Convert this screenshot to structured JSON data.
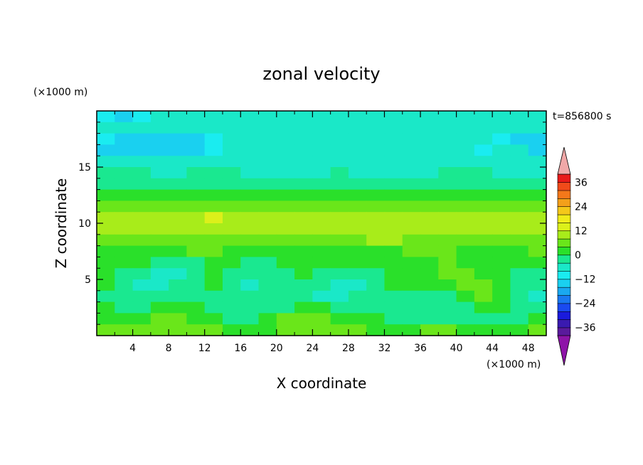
{
  "chart_data": {
    "type": "heatmap",
    "title": "zonal velocity",
    "xlabel": "X coordinate",
    "ylabel": "Z coordinate",
    "x_unit": "(×1000 m)",
    "y_unit": "(×1000 m)",
    "time_label": "t=856800 s",
    "xlim": [
      0,
      50
    ],
    "ylim": [
      0,
      20
    ],
    "x_ticks": [
      "4",
      "8",
      "12",
      "16",
      "20",
      "24",
      "28",
      "32",
      "36",
      "40",
      "44",
      "48"
    ],
    "y_ticks": [
      "5",
      "10",
      "15"
    ],
    "colorbar": {
      "tick_labels": [
        "36",
        "24",
        "12",
        "0",
        "−12",
        "−24",
        "−36"
      ],
      "tick_values": [
        36,
        24,
        12,
        0,
        -12,
        -24,
        -36
      ],
      "levels_min": -40,
      "levels_max": 40,
      "level_step": 4,
      "colors": [
        "#5a1a9c",
        "#3a1ab0",
        "#1a1adc",
        "#1a4af0",
        "#1a78f0",
        "#1aa8f0",
        "#1ad0f0",
        "#1aecf0",
        "#1ae8c8",
        "#1ae890",
        "#2ae02a",
        "#6ae61a",
        "#a8ec1a",
        "#dcf01a",
        "#f0ec1a",
        "#f4c81a",
        "#f4a01a",
        "#f4781a",
        "#f04a1a",
        "#e81a1a"
      ],
      "under_color": "#8e14a8",
      "over_color": "#f0a8a8"
    },
    "rows_top_to_bottom": [
      [
        -12,
        -16,
        -12,
        -8,
        -8,
        -8,
        -8,
        -8,
        -8,
        -8,
        -8,
        -8,
        -8,
        -8,
        -8,
        -8,
        -8,
        -8,
        -8,
        -8,
        -8,
        -8,
        -8,
        -8,
        -8
      ],
      [
        -8,
        -8,
        -8,
        -8,
        -8,
        -8,
        -8,
        -8,
        -8,
        -8,
        -8,
        -8,
        -8,
        -8,
        -8,
        -8,
        -8,
        -8,
        -8,
        -8,
        -8,
        -8,
        -8,
        -8,
        -8
      ],
      [
        -12,
        -16,
        -16,
        -16,
        -16,
        -16,
        -12,
        -8,
        -8,
        -8,
        -8,
        -8,
        -8,
        -8,
        -8,
        -8,
        -8,
        -8,
        -8,
        -8,
        -8,
        -8,
        -12,
        -16,
        -16
      ],
      [
        -16,
        -16,
        -16,
        -16,
        -16,
        -16,
        -12,
        -8,
        -8,
        -8,
        -8,
        -8,
        -8,
        -8,
        -8,
        -8,
        -8,
        -8,
        -8,
        -8,
        -8,
        -12,
        -8,
        -8,
        -16
      ],
      [
        -8,
        -8,
        -8,
        -8,
        -8,
        -8,
        -8,
        -8,
        -8,
        -8,
        -8,
        -8,
        -8,
        -8,
        -8,
        -8,
        -8,
        -8,
        -8,
        -8,
        -8,
        -8,
        -8,
        -8,
        -8
      ],
      [
        -4,
        -4,
        -4,
        -8,
        -8,
        -4,
        -4,
        -4,
        -8,
        -8,
        -8,
        -8,
        -8,
        -4,
        -8,
        -8,
        -8,
        -8,
        -8,
        -4,
        -4,
        -4,
        -8,
        -8,
        -8
      ],
      [
        -4,
        -4,
        -4,
        -4,
        -4,
        -4,
        -4,
        -4,
        -4,
        -4,
        -4,
        -4,
        -4,
        -4,
        -4,
        -4,
        -4,
        -4,
        -4,
        -4,
        -4,
        -4,
        -4,
        -4,
        -4
      ],
      [
        0,
        0,
        0,
        0,
        0,
        0,
        0,
        0,
        0,
        0,
        0,
        0,
        0,
        0,
        0,
        0,
        0,
        0,
        0,
        0,
        0,
        0,
        0,
        0,
        0
      ],
      [
        4,
        4,
        4,
        4,
        4,
        4,
        4,
        4,
        4,
        4,
        4,
        4,
        4,
        4,
        4,
        4,
        4,
        4,
        4,
        4,
        4,
        4,
        4,
        4,
        4
      ],
      [
        8,
        8,
        8,
        8,
        8,
        8,
        12,
        8,
        8,
        8,
        8,
        8,
        8,
        8,
        8,
        8,
        8,
        8,
        8,
        8,
        8,
        8,
        8,
        8,
        8
      ],
      [
        8,
        8,
        8,
        8,
        8,
        8,
        8,
        8,
        8,
        8,
        8,
        8,
        8,
        8,
        8,
        8,
        8,
        8,
        8,
        8,
        8,
        8,
        8,
        8,
        8
      ],
      [
        4,
        4,
        4,
        4,
        4,
        4,
        4,
        4,
        4,
        4,
        4,
        4,
        4,
        4,
        4,
        8,
        8,
        4,
        4,
        4,
        4,
        4,
        4,
        4,
        4
      ],
      [
        0,
        0,
        0,
        0,
        0,
        4,
        4,
        0,
        0,
        0,
        0,
        0,
        0,
        0,
        0,
        0,
        0,
        4,
        4,
        4,
        0,
        0,
        0,
        0,
        4
      ],
      [
        0,
        0,
        0,
        -4,
        -4,
        -4,
        0,
        0,
        -4,
        -4,
        0,
        0,
        0,
        0,
        0,
        0,
        0,
        0,
        0,
        4,
        0,
        0,
        0,
        0,
        0
      ],
      [
        0,
        -4,
        -4,
        -8,
        -8,
        -4,
        0,
        -4,
        -4,
        -4,
        -4,
        0,
        -4,
        -4,
        -4,
        -4,
        0,
        0,
        0,
        4,
        4,
        0,
        0,
        -4,
        -4
      ],
      [
        0,
        -4,
        -8,
        -8,
        -4,
        -4,
        0,
        -4,
        -8,
        -4,
        -4,
        -4,
        -4,
        -8,
        -8,
        -4,
        0,
        0,
        0,
        0,
        4,
        4,
        0,
        -4,
        -4
      ],
      [
        -4,
        -4,
        -4,
        -4,
        -4,
        -4,
        -4,
        -4,
        -4,
        -4,
        -4,
        -4,
        -8,
        -8,
        -4,
        -4,
        -4,
        -4,
        -4,
        -4,
        0,
        4,
        0,
        -4,
        -8
      ],
      [
        0,
        -4,
        -4,
        0,
        0,
        0,
        -4,
        -4,
        -4,
        -4,
        -4,
        0,
        0,
        -4,
        -4,
        -4,
        -4,
        -4,
        -4,
        -4,
        -4,
        0,
        0,
        -4,
        -4
      ],
      [
        0,
        0,
        0,
        4,
        4,
        0,
        0,
        -4,
        -4,
        0,
        4,
        4,
        4,
        0,
        0,
        0,
        -4,
        -4,
        -4,
        -4,
        -4,
        -4,
        -4,
        -4,
        0
      ],
      [
        4,
        4,
        4,
        4,
        4,
        4,
        4,
        0,
        0,
        0,
        4,
        4,
        4,
        4,
        4,
        0,
        0,
        0,
        4,
        4,
        0,
        0,
        0,
        0,
        4
      ]
    ]
  }
}
